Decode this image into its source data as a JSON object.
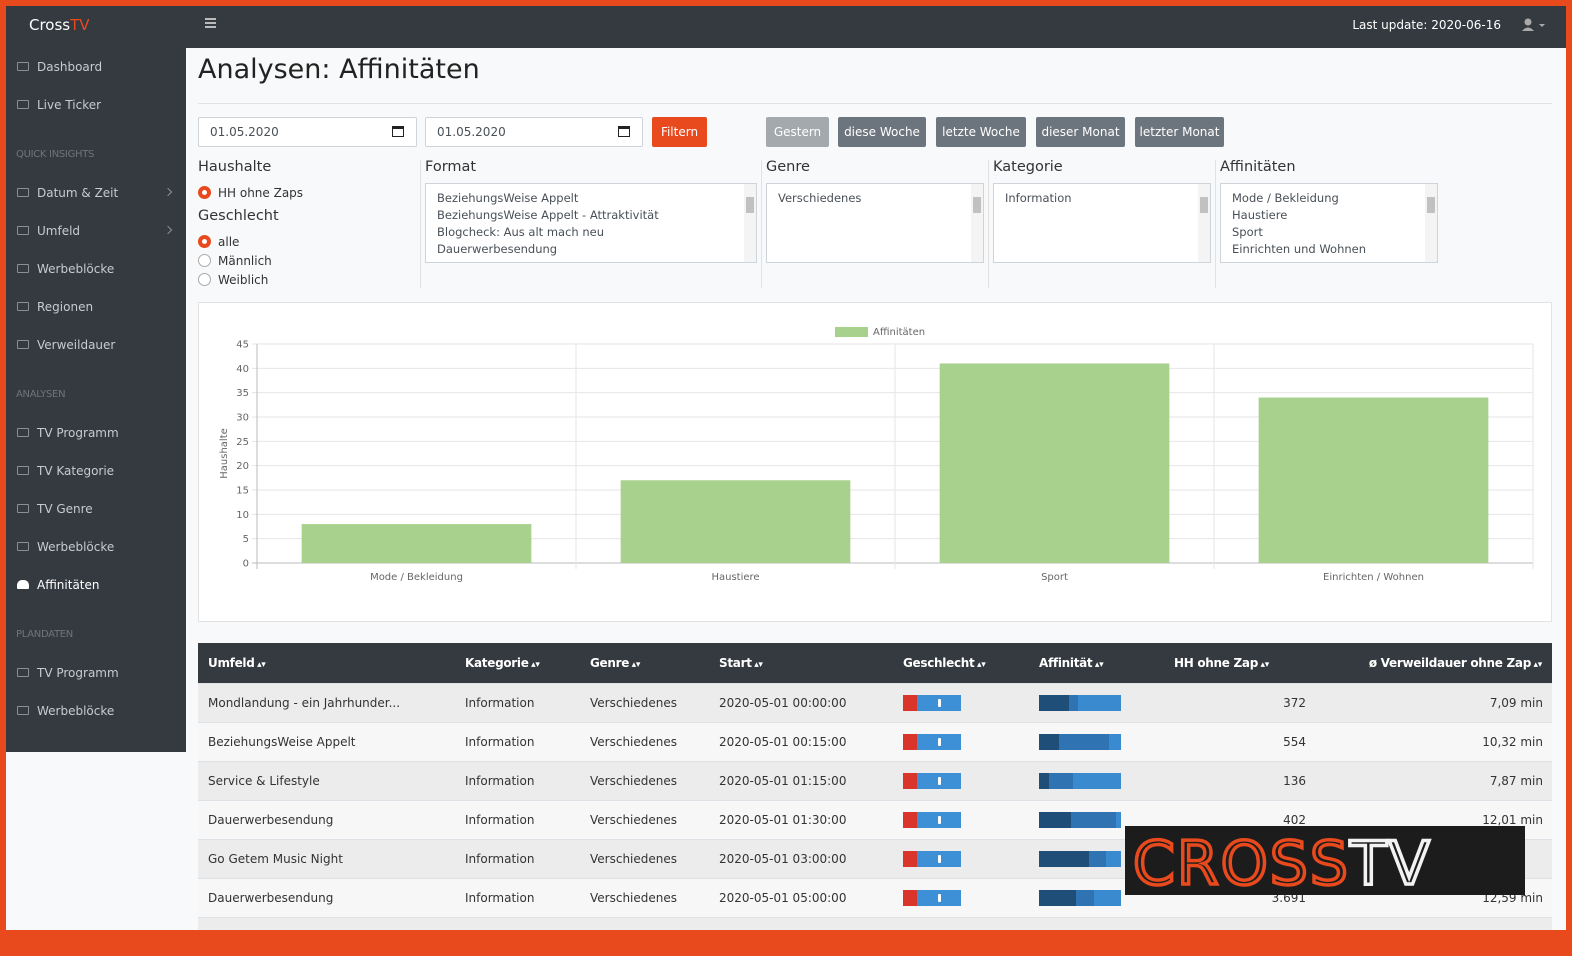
{
  "brand": {
    "name": "Cross",
    "accent": "TV"
  },
  "header": {
    "last_update": "Last update: 2020-06-16"
  },
  "sidebar": [
    {
      "items": [
        {
          "label": "Dashboard"
        },
        {
          "label": "Live Ticker"
        }
      ]
    },
    {
      "title": "QUICK INSIGHTS",
      "items": [
        {
          "label": "Datum & Zeit",
          "expandable": true
        },
        {
          "label": "Umfeld",
          "expandable": true
        },
        {
          "label": "Werbeblöcke"
        },
        {
          "label": "Regionen"
        },
        {
          "label": "Verweildauer"
        }
      ]
    },
    {
      "title": "ANALYSEN",
      "items": [
        {
          "label": "TV Programm"
        },
        {
          "label": "TV Kategorie"
        },
        {
          "label": "TV Genre"
        },
        {
          "label": "Werbeblöcke"
        },
        {
          "label": "Affinitäten",
          "active": true
        }
      ]
    },
    {
      "title": "PLANDATEN",
      "items": [
        {
          "label": "TV Programm"
        },
        {
          "label": "Werbeblöcke"
        }
      ]
    }
  ],
  "page": {
    "title": "Analysen: Affinitäten"
  },
  "filter": {
    "date_from": "01.05.2020",
    "date_to": "01.05.2020",
    "submit": "Filtern",
    "quick": [
      {
        "label": "Gestern",
        "disabled": true
      },
      {
        "label": "diese Woche"
      },
      {
        "label": "letzte Woche"
      },
      {
        "label": "dieser Monat"
      },
      {
        "label": "letzter Monat"
      }
    ],
    "haushalte": {
      "title": "Haushalte",
      "options": [
        {
          "label": "HH ohne Zaps",
          "checked": true
        }
      ]
    },
    "geschlecht": {
      "title": "Geschlecht",
      "options": [
        {
          "label": "alle",
          "checked": true
        },
        {
          "label": "Männlich"
        },
        {
          "label": "Weiblich"
        }
      ]
    },
    "lists": [
      {
        "title": "Format",
        "items": [
          "BeziehungsWeise Appelt",
          "BeziehungsWeise Appelt - Attraktivität",
          "Blogcheck: Aus alt mach neu",
          "Dauerwerbesendung"
        ]
      },
      {
        "title": "Genre",
        "items": [
          "Verschiedenes"
        ]
      },
      {
        "title": "Kategorie",
        "items": [
          "Information"
        ]
      },
      {
        "title": "Affinitäten",
        "items": [
          "Mode / Bekleidung",
          "Haustiere",
          "Sport",
          "Einrichten und Wohnen"
        ]
      }
    ]
  },
  "chart_data": {
    "type": "bar",
    "legend": "Affinitäten",
    "y_label": "Haushalte",
    "categories": [
      "Mode / Bekleidung",
      "Haustiere",
      "Sport",
      "Einrichten / Wohnen"
    ],
    "values": [
      8,
      17,
      41,
      34
    ],
    "color": "#a8d18d",
    "ylim": [
      0,
      45
    ],
    "yticks": [
      0,
      5,
      10,
      15,
      20,
      25,
      30,
      35,
      40,
      45
    ],
    "grid": true,
    "legend_position": "top"
  },
  "table": {
    "columns": [
      "Umfeld",
      "Kategorie",
      "Genre",
      "Start",
      "Geschlecht",
      "Affinität",
      "HH ohne Zap",
      "ø Verweildauer ohne Zap"
    ],
    "rows": [
      {
        "umfeld": "Mondlandung - ein Jahrhunder...",
        "kategorie": "Information",
        "genre": "Verschiedenes",
        "start": "2020-05-01 00:00:00",
        "affinity": [
          37,
          10,
          53
        ],
        "hh": "372",
        "dauer": "7,09 min"
      },
      {
        "umfeld": "BeziehungsWeise Appelt",
        "kategorie": "Information",
        "genre": "Verschiedenes",
        "start": "2020-05-01 00:15:00",
        "affinity": [
          24,
          61,
          15
        ],
        "hh": "554",
        "dauer": "10,32 min"
      },
      {
        "umfeld": "Service & Lifestyle",
        "kategorie": "Information",
        "genre": "Verschiedenes",
        "start": "2020-05-01 01:15:00",
        "affinity": [
          12,
          30,
          58
        ],
        "hh": "136",
        "dauer": "7,87 min"
      },
      {
        "umfeld": "Dauerwerbesendung",
        "kategorie": "Information",
        "genre": "Verschiedenes",
        "start": "2020-05-01 01:30:00",
        "affinity": [
          39,
          55,
          6
        ],
        "hh": "402",
        "dauer": "12,01 min"
      },
      {
        "umfeld": "Go Getem Music Night",
        "kategorie": "Information",
        "genre": "Verschiedenes",
        "start": "2020-05-01 03:00:00",
        "affinity": [
          61,
          21,
          18
        ],
        "hh": null,
        "dauer": null
      },
      {
        "umfeld": "Dauerwerbesendung",
        "kategorie": "Information",
        "genre": "Verschiedenes",
        "start": "2020-05-01 05:00:00",
        "affinity": [
          45,
          22,
          33
        ],
        "hh": "3.691",
        "dauer": "12,59 min"
      }
    ]
  },
  "watermark": {
    "main": "CROSS",
    "accent": "TV"
  }
}
